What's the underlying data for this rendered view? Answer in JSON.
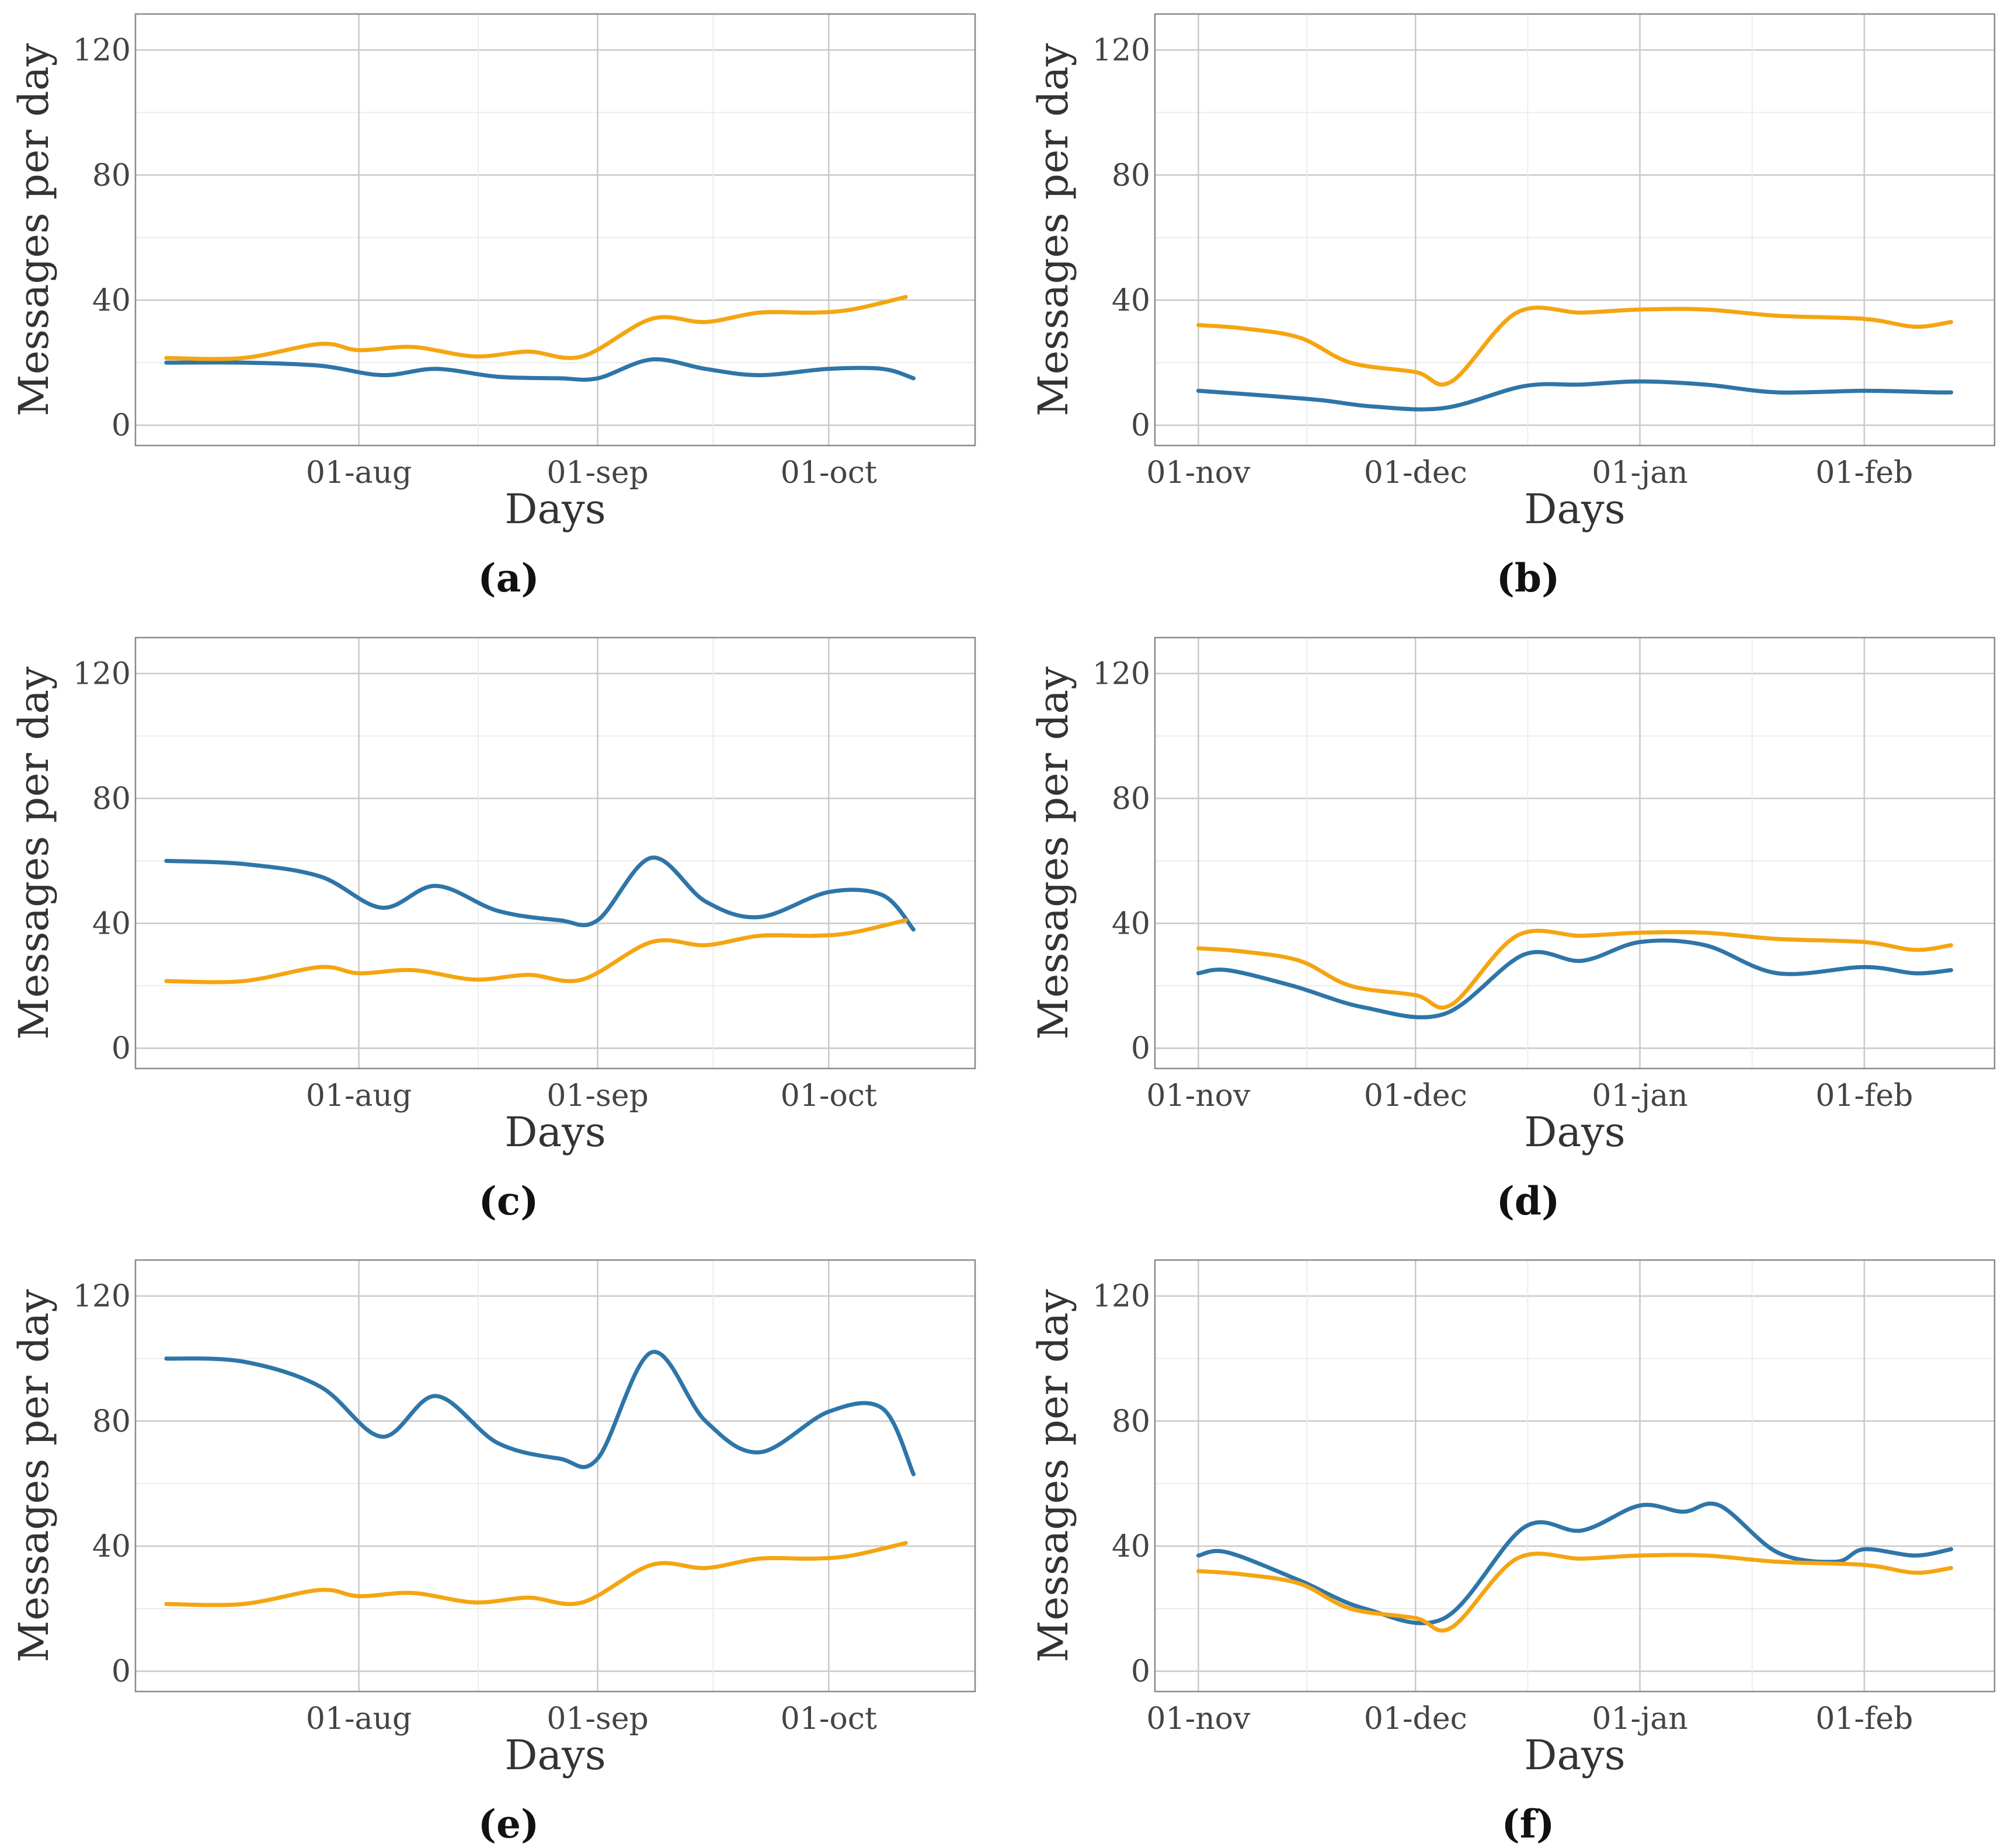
{
  "colors": {
    "blue": "#2e75a8",
    "orange": "#f5a511"
  },
  "chart_data": [
    {
      "type": "line",
      "panel_label": "(a)",
      "xlabel": "Days",
      "ylabel": "Messages per day",
      "ylim": [
        0,
        120
      ],
      "yticks": [
        "0",
        "40",
        "80",
        "120"
      ],
      "xlim": [
        "2023-07-03",
        "2023-10-20"
      ],
      "xticks": [
        {
          "date": "2023-08-01",
          "label": "01-aug"
        },
        {
          "date": "2023-09-01",
          "label": "01-sep"
        },
        {
          "date": "2023-10-01",
          "label": "01-oct"
        }
      ],
      "grid": true,
      "series": [
        {
          "color": "blue",
          "points": [
            [
              "2023-07-07",
              20
            ],
            [
              "2023-07-17",
              20
            ],
            [
              "2023-07-27",
              19
            ],
            [
              "2023-08-04",
              16
            ],
            [
              "2023-08-11",
              18
            ],
            [
              "2023-08-19",
              15.5
            ],
            [
              "2023-08-27",
              15
            ],
            [
              "2023-09-01",
              15
            ],
            [
              "2023-09-08",
              21
            ],
            [
              "2023-09-15",
              18
            ],
            [
              "2023-09-22",
              16
            ],
            [
              "2023-10-01",
              18
            ],
            [
              "2023-10-08",
              18
            ],
            [
              "2023-10-12",
              15
            ]
          ]
        },
        {
          "color": "orange",
          "points": [
            [
              "2023-07-07",
              21.5
            ],
            [
              "2023-07-17",
              21.5
            ],
            [
              "2023-07-27",
              26
            ],
            [
              "2023-08-01",
              24
            ],
            [
              "2023-08-08",
              25
            ],
            [
              "2023-08-16",
              22
            ],
            [
              "2023-08-23",
              23.5
            ],
            [
              "2023-08-30",
              22
            ],
            [
              "2023-09-08",
              34
            ],
            [
              "2023-09-15",
              33
            ],
            [
              "2023-09-22",
              36
            ],
            [
              "2023-09-29",
              36
            ],
            [
              "2023-10-04",
              37
            ],
            [
              "2023-10-11",
              41
            ]
          ]
        }
      ]
    },
    {
      "type": "line",
      "panel_label": "(b)",
      "xlabel": "Days",
      "ylabel": "Messages per day",
      "ylim": [
        0,
        120
      ],
      "yticks": [
        "0",
        "40",
        "80",
        "120"
      ],
      "xlim": [
        "2023-10-26",
        "2024-02-19"
      ],
      "xticks": [
        {
          "date": "2023-11-01",
          "label": "01-nov"
        },
        {
          "date": "2023-12-01",
          "label": "01-dec"
        },
        {
          "date": "2024-01-01",
          "label": "01-jan"
        },
        {
          "date": "2024-02-01",
          "label": "01-feb"
        }
      ],
      "grid": true,
      "series": [
        {
          "color": "blue",
          "points": [
            [
              "2023-11-01",
              11
            ],
            [
              "2023-11-10",
              9.5
            ],
            [
              "2023-11-18",
              8
            ],
            [
              "2023-11-25",
              6
            ],
            [
              "2023-12-05",
              5.5
            ],
            [
              "2023-12-16",
              12.5
            ],
            [
              "2023-12-24",
              13
            ],
            [
              "2024-01-01",
              14
            ],
            [
              "2024-01-10",
              13
            ],
            [
              "2024-01-20",
              10.5
            ],
            [
              "2024-02-01",
              11
            ],
            [
              "2024-02-11",
              10.5
            ],
            [
              "2024-02-13",
              10.5
            ]
          ]
        },
        {
          "color": "orange",
          "points": [
            [
              "2023-11-01",
              32
            ],
            [
              "2023-11-07",
              31
            ],
            [
              "2023-11-15",
              28
            ],
            [
              "2023-11-22",
              20
            ],
            [
              "2023-12-01",
              17
            ],
            [
              "2023-12-06",
              14
            ],
            [
              "2023-12-15",
              36
            ],
            [
              "2023-12-24",
              36
            ],
            [
              "2024-01-01",
              37
            ],
            [
              "2024-01-10",
              37
            ],
            [
              "2024-01-20",
              35
            ],
            [
              "2024-02-01",
              34
            ],
            [
              "2024-02-08",
              31.5
            ],
            [
              "2024-02-13",
              33
            ]
          ]
        }
      ]
    },
    {
      "type": "line",
      "panel_label": "(c)",
      "xlabel": "Days",
      "ylabel": "Messages per day",
      "ylim": [
        0,
        120
      ],
      "yticks": [
        "0",
        "40",
        "80",
        "120"
      ],
      "xlim": [
        "2023-07-03",
        "2023-10-20"
      ],
      "xticks": [
        {
          "date": "2023-08-01",
          "label": "01-aug"
        },
        {
          "date": "2023-09-01",
          "label": "01-sep"
        },
        {
          "date": "2023-10-01",
          "label": "01-oct"
        }
      ],
      "grid": true,
      "series": [
        {
          "color": "blue",
          "points": [
            [
              "2023-07-07",
              60
            ],
            [
              "2023-07-17",
              59
            ],
            [
              "2023-07-27",
              55
            ],
            [
              "2023-08-04",
              45
            ],
            [
              "2023-08-11",
              52
            ],
            [
              "2023-08-19",
              44
            ],
            [
              "2023-08-27",
              41
            ],
            [
              "2023-09-01",
              41
            ],
            [
              "2023-09-08",
              61
            ],
            [
              "2023-09-15",
              47
            ],
            [
              "2023-09-22",
              42
            ],
            [
              "2023-10-01",
              50
            ],
            [
              "2023-10-08",
              49
            ],
            [
              "2023-10-12",
              38
            ]
          ]
        },
        {
          "color": "orange",
          "points": [
            [
              "2023-07-07",
              21.5
            ],
            [
              "2023-07-17",
              21.5
            ],
            [
              "2023-07-27",
              26
            ],
            [
              "2023-08-01",
              24
            ],
            [
              "2023-08-08",
              25
            ],
            [
              "2023-08-16",
              22
            ],
            [
              "2023-08-23",
              23.5
            ],
            [
              "2023-08-30",
              22
            ],
            [
              "2023-09-08",
              34
            ],
            [
              "2023-09-15",
              33
            ],
            [
              "2023-09-22",
              36
            ],
            [
              "2023-09-29",
              36
            ],
            [
              "2023-10-04",
              37
            ],
            [
              "2023-10-11",
              41
            ]
          ]
        }
      ]
    },
    {
      "type": "line",
      "panel_label": "(d)",
      "xlabel": "Days",
      "ylabel": "Messages per day",
      "ylim": [
        0,
        120
      ],
      "yticks": [
        "0",
        "40",
        "80",
        "120"
      ],
      "xlim": [
        "2023-10-26",
        "2024-02-19"
      ],
      "xticks": [
        {
          "date": "2023-11-01",
          "label": "01-nov"
        },
        {
          "date": "2023-12-01",
          "label": "01-dec"
        },
        {
          "date": "2024-01-01",
          "label": "01-jan"
        },
        {
          "date": "2024-02-01",
          "label": "01-feb"
        }
      ],
      "grid": true,
      "series": [
        {
          "color": "blue",
          "points": [
            [
              "2023-11-01",
              24
            ],
            [
              "2023-11-05",
              25
            ],
            [
              "2023-11-14",
              20
            ],
            [
              "2023-11-24",
              13
            ],
            [
              "2023-12-05",
              11
            ],
            [
              "2023-12-16",
              30
            ],
            [
              "2023-12-24",
              28
            ],
            [
              "2024-01-01",
              34
            ],
            [
              "2024-01-10",
              33
            ],
            [
              "2024-01-20",
              24
            ],
            [
              "2024-02-01",
              26
            ],
            [
              "2024-02-08",
              24
            ],
            [
              "2024-02-13",
              25
            ]
          ]
        },
        {
          "color": "orange",
          "points": [
            [
              "2023-11-01",
              32
            ],
            [
              "2023-11-07",
              31
            ],
            [
              "2023-11-15",
              28
            ],
            [
              "2023-11-22",
              20
            ],
            [
              "2023-12-01",
              17
            ],
            [
              "2023-12-06",
              14
            ],
            [
              "2023-12-15",
              36
            ],
            [
              "2023-12-24",
              36
            ],
            [
              "2024-01-01",
              37
            ],
            [
              "2024-01-10",
              37
            ],
            [
              "2024-01-20",
              35
            ],
            [
              "2024-02-01",
              34
            ],
            [
              "2024-02-08",
              31.5
            ],
            [
              "2024-02-13",
              33
            ]
          ]
        }
      ]
    },
    {
      "type": "line",
      "panel_label": "(e)",
      "xlabel": "Days",
      "ylabel": "Messages per day",
      "ylim": [
        0,
        120
      ],
      "yticks": [
        "0",
        "40",
        "80",
        "120"
      ],
      "xlim": [
        "2023-07-03",
        "2023-10-20"
      ],
      "xticks": [
        {
          "date": "2023-08-01",
          "label": "01-aug"
        },
        {
          "date": "2023-09-01",
          "label": "01-sep"
        },
        {
          "date": "2023-10-01",
          "label": "01-oct"
        }
      ],
      "grid": true,
      "series": [
        {
          "color": "blue",
          "points": [
            [
              "2023-07-07",
              100
            ],
            [
              "2023-07-17",
              99
            ],
            [
              "2023-07-27",
              91
            ],
            [
              "2023-08-04",
              75
            ],
            [
              "2023-08-11",
              88
            ],
            [
              "2023-08-19",
              73
            ],
            [
              "2023-08-27",
              68
            ],
            [
              "2023-09-01",
              68
            ],
            [
              "2023-09-08",
              102
            ],
            [
              "2023-09-15",
              80
            ],
            [
              "2023-09-22",
              70
            ],
            [
              "2023-10-01",
              83
            ],
            [
              "2023-10-08",
              84
            ],
            [
              "2023-10-12",
              63
            ]
          ]
        },
        {
          "color": "orange",
          "points": [
            [
              "2023-07-07",
              21.5
            ],
            [
              "2023-07-17",
              21.5
            ],
            [
              "2023-07-27",
              26
            ],
            [
              "2023-08-01",
              24
            ],
            [
              "2023-08-08",
              25
            ],
            [
              "2023-08-16",
              22
            ],
            [
              "2023-08-23",
              23.5
            ],
            [
              "2023-08-30",
              22
            ],
            [
              "2023-09-08",
              34
            ],
            [
              "2023-09-15",
              33
            ],
            [
              "2023-09-22",
              36
            ],
            [
              "2023-09-29",
              36
            ],
            [
              "2023-10-04",
              37
            ],
            [
              "2023-10-11",
              41
            ]
          ]
        }
      ]
    },
    {
      "type": "line",
      "panel_label": "(f)",
      "xlabel": "Days",
      "ylabel": "Messages per day",
      "ylim": [
        0,
        120
      ],
      "yticks": [
        "0",
        "40",
        "80",
        "120"
      ],
      "xlim": [
        "2023-10-26",
        "2024-02-19"
      ],
      "xticks": [
        {
          "date": "2023-11-01",
          "label": "01-nov"
        },
        {
          "date": "2023-12-01",
          "label": "01-dec"
        },
        {
          "date": "2024-01-01",
          "label": "01-jan"
        },
        {
          "date": "2024-02-01",
          "label": "01-feb"
        }
      ],
      "grid": true,
      "series": [
        {
          "color": "blue",
          "points": [
            [
              "2023-11-01",
              37
            ],
            [
              "2023-11-05",
              38
            ],
            [
              "2023-11-15",
              29
            ],
            [
              "2023-11-24",
              20
            ],
            [
              "2023-12-05",
              17
            ],
            [
              "2023-12-16",
              46
            ],
            [
              "2023-12-24",
              45
            ],
            [
              "2024-01-01",
              53
            ],
            [
              "2024-01-07",
              51
            ],
            [
              "2024-01-12",
              53
            ],
            [
              "2024-01-20",
              38
            ],
            [
              "2024-01-28",
              35
            ],
            [
              "2024-02-01",
              39
            ],
            [
              "2024-02-08",
              37
            ],
            [
              "2024-02-13",
              39
            ]
          ]
        },
        {
          "color": "orange",
          "points": [
            [
              "2023-11-01",
              32
            ],
            [
              "2023-11-07",
              31
            ],
            [
              "2023-11-15",
              28
            ],
            [
              "2023-11-22",
              20
            ],
            [
              "2023-12-01",
              17
            ],
            [
              "2023-12-06",
              14
            ],
            [
              "2023-12-15",
              36
            ],
            [
              "2023-12-24",
              36
            ],
            [
              "2024-01-01",
              37
            ],
            [
              "2024-01-10",
              37
            ],
            [
              "2024-01-20",
              35
            ],
            [
              "2024-02-01",
              34
            ],
            [
              "2024-02-08",
              31.5
            ],
            [
              "2024-02-13",
              33
            ]
          ]
        }
      ]
    }
  ]
}
